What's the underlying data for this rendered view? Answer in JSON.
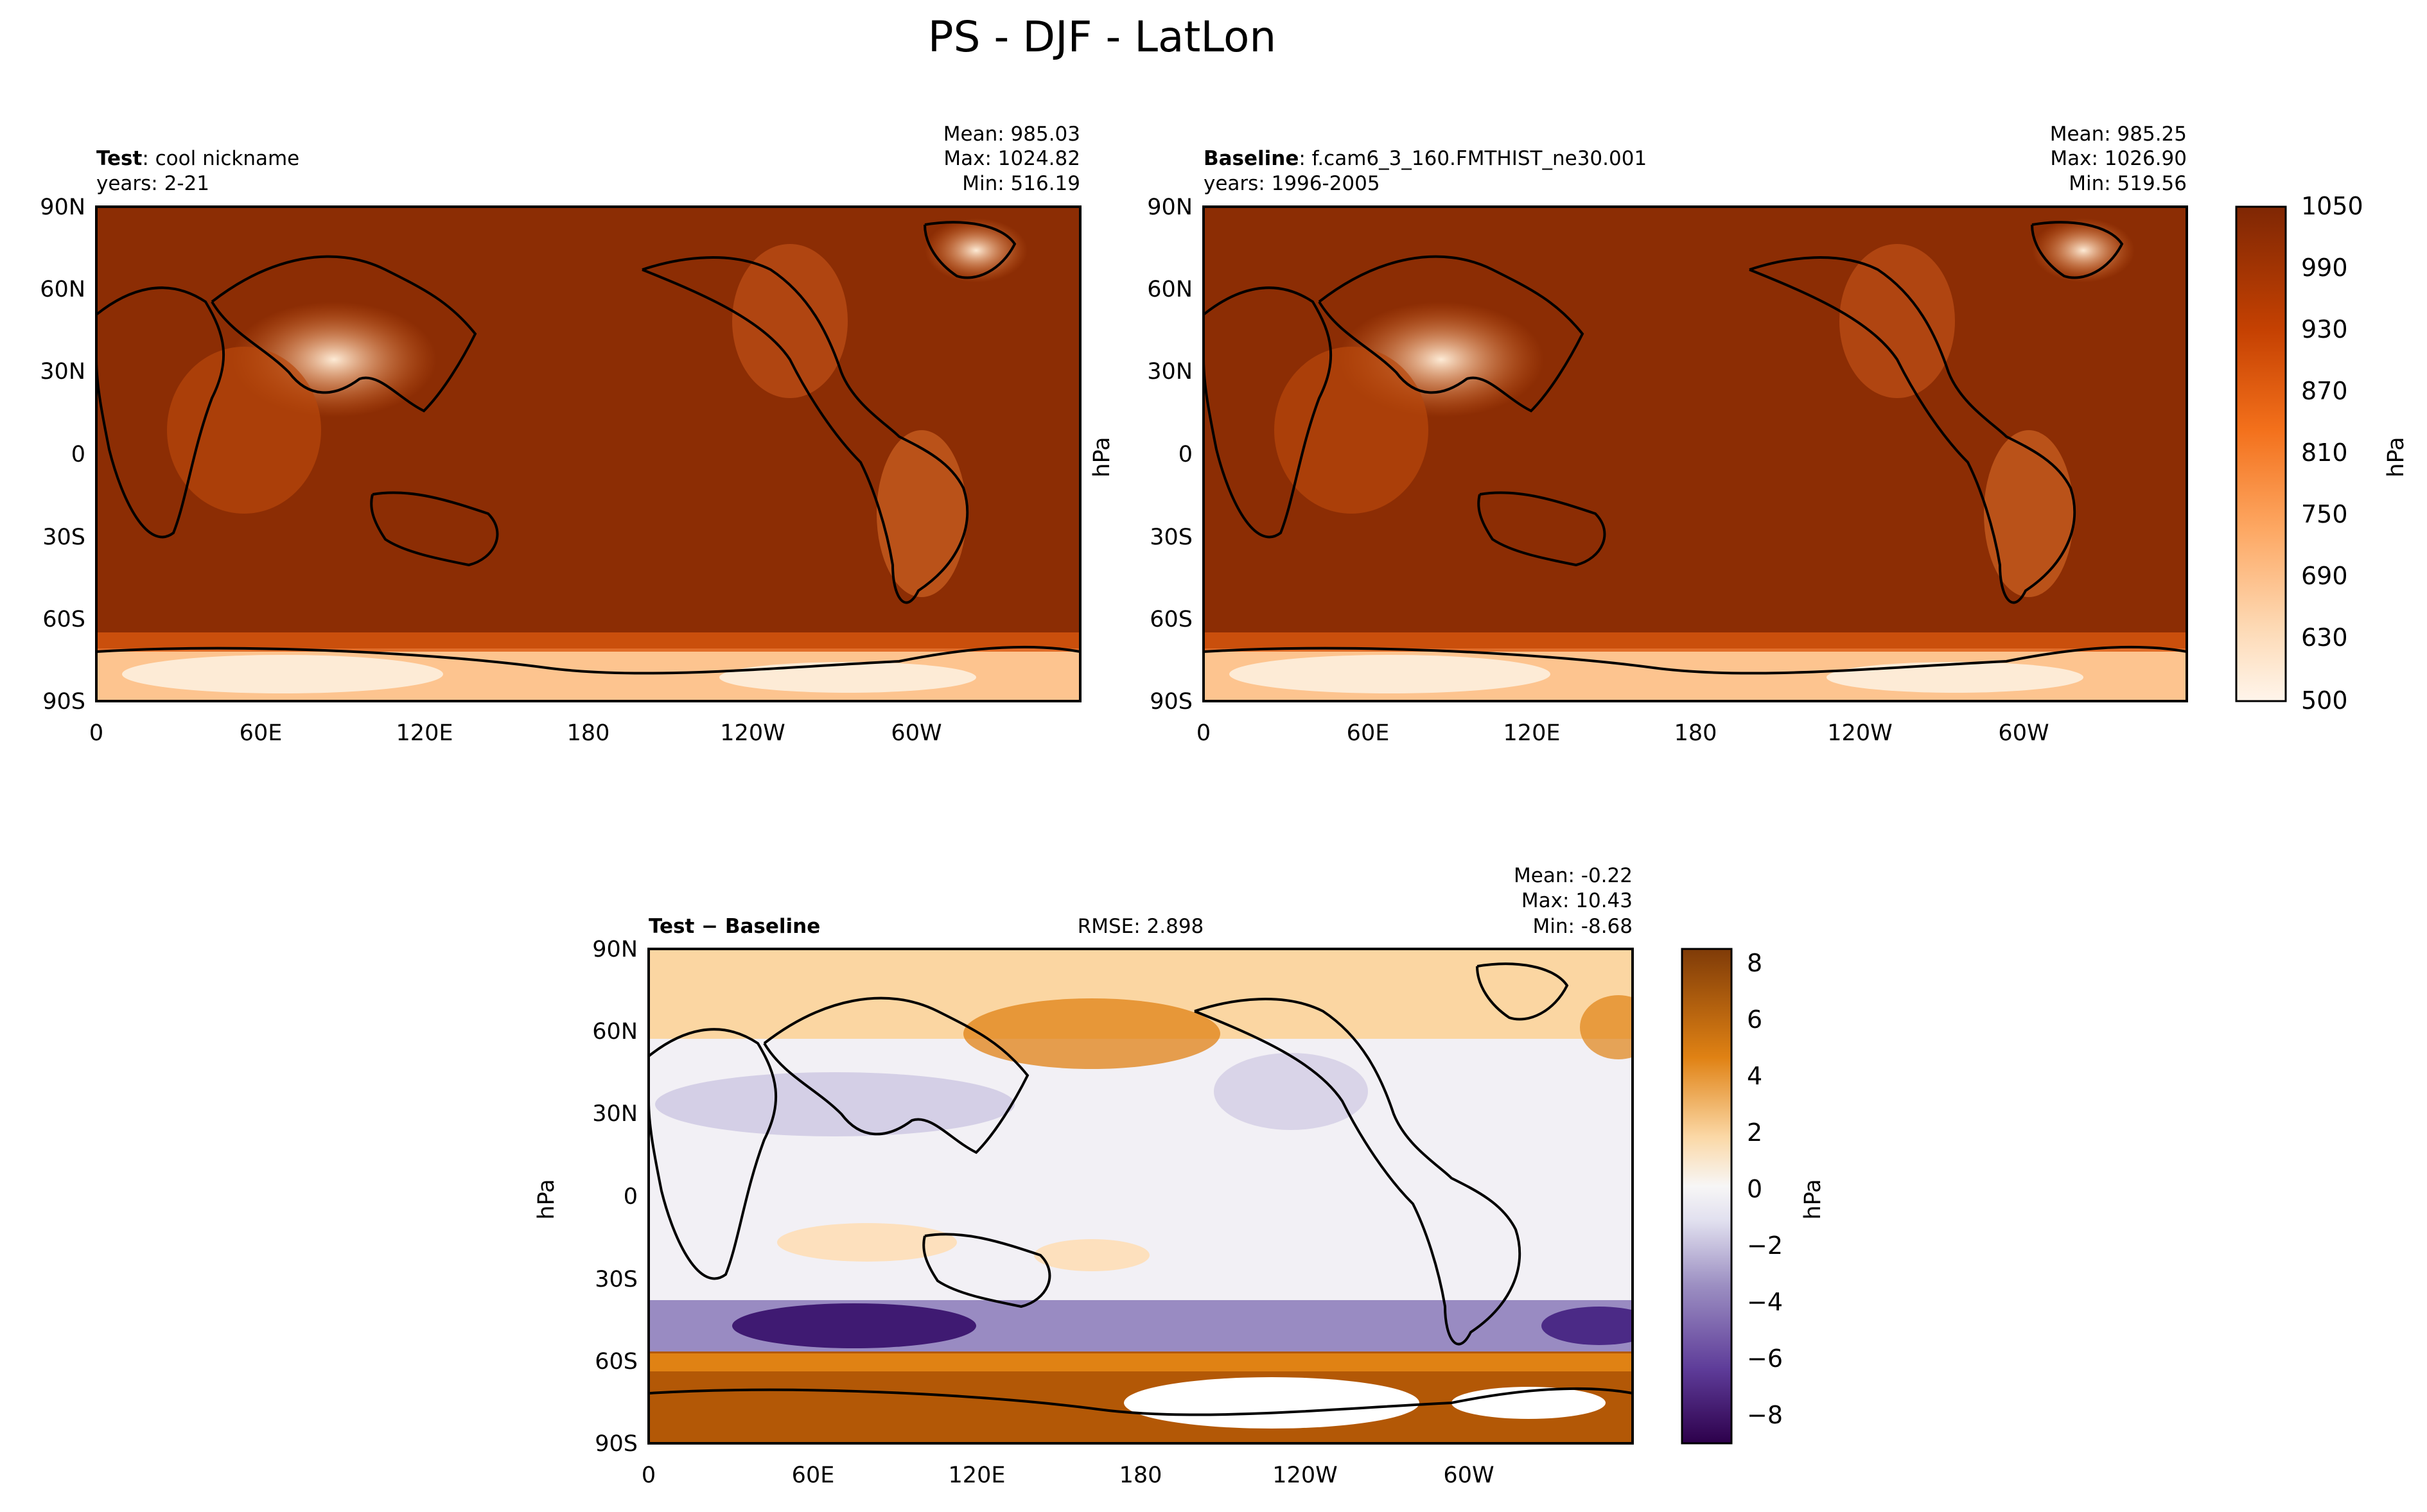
{
  "figure": {
    "title": "PS - DJF - LatLon"
  },
  "chart_data": [
    {
      "id": "test",
      "type": "heatmap",
      "panel_label_bold": "Test",
      "panel_label_rest": ": cool nickname",
      "years": "years: 2-21",
      "stats": [
        "Mean: 985.03",
        "Max: 1024.82",
        "Min: 516.19"
      ],
      "xticks": [
        "0",
        "60E",
        "120E",
        "180",
        "120W",
        "60W"
      ],
      "yticks": [
        "90N",
        "60N",
        "30N",
        "0",
        "30S",
        "60S",
        "90S"
      ],
      "ylabel": "",
      "colormap": "Oranges",
      "xlim": [
        0,
        360
      ],
      "ylim": [
        -90,
        90
      ]
    },
    {
      "id": "baseline",
      "type": "heatmap",
      "panel_label_bold": "Baseline",
      "panel_label_rest": ": f.cam6_3_160.FMTHIST_ne30.001",
      "years": "years: 1996-2005",
      "stats": [
        "Mean: 985.25",
        "Max: 1026.90",
        "Min: 519.56"
      ],
      "xticks": [
        "0",
        "60E",
        "120E",
        "180",
        "120W",
        "60W"
      ],
      "yticks": [
        "90N",
        "60N",
        "30N",
        "0",
        "30S",
        "60S",
        "90S"
      ],
      "ylabel": "hPa",
      "colormap": "Oranges",
      "colorbar": {
        "label": "hPa",
        "ticks": [
          "1050",
          "990",
          "930",
          "870",
          "810",
          "750",
          "690",
          "630",
          "500"
        ],
        "range": [
          500,
          1050
        ]
      },
      "xlim": [
        0,
        360
      ],
      "ylim": [
        -90,
        90
      ]
    },
    {
      "id": "diff",
      "type": "heatmap",
      "panel_label_bold": "Test − Baseline",
      "rmse": "RMSE: 2.898",
      "stats": [
        "Mean: -0.22",
        "Max: 10.43",
        "Min: -8.68"
      ],
      "xticks": [
        "0",
        "60E",
        "120E",
        "180",
        "120W",
        "60W"
      ],
      "yticks": [
        "90N",
        "60N",
        "30N",
        "0",
        "30S",
        "60S",
        "90S"
      ],
      "ylabel": "hPa",
      "colormap": "PuOr_r",
      "colorbar": {
        "label": "hPa",
        "ticks": [
          "8",
          "6",
          "4",
          "2",
          "0",
          "−2",
          "−4",
          "−6",
          "−8"
        ],
        "range": [
          -9,
          8.5
        ]
      },
      "xlim": [
        0,
        360
      ],
      "ylim": [
        -90,
        90
      ]
    }
  ]
}
